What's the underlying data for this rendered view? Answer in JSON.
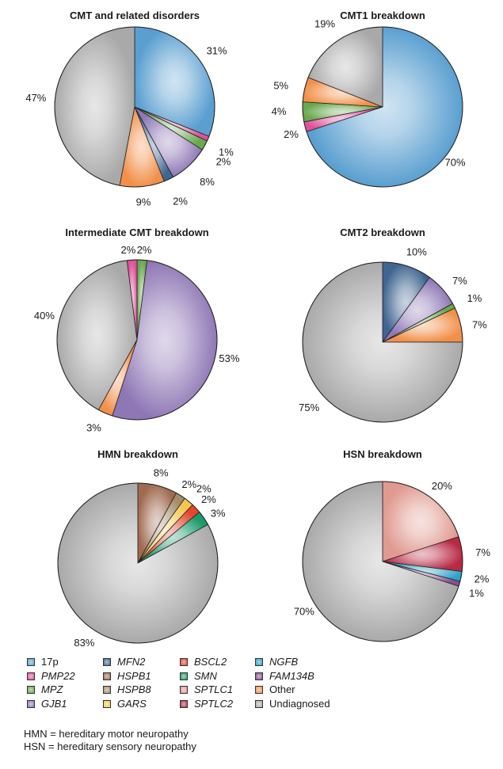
{
  "colors": {
    "17p": "#5a9fd0",
    "PMP22": "#e0509a",
    "MPZ": "#6aa84f",
    "GJB1": "#8f77b5",
    "MFN2": "#3f6690",
    "HSPB1": "#a06a50",
    "HSPB8": "#a58c6a",
    "GARS": "#f4c64e",
    "BSCL2": "#e4452d",
    "SMN": "#1c9a6a",
    "SPTLC1": "#e09a90",
    "SPTLC2": "#b82a45",
    "NGFB": "#2ba3c9",
    "FAM134B": "#8a4f8a",
    "Other": "#f2904a",
    "Undiagnosed": "#a9a9a9"
  },
  "chart_data": [
    {
      "type": "pie",
      "title": "CMT and related disorders",
      "start_angle_deg": 0,
      "slices": [
        {
          "key": "17p",
          "value": 31,
          "label": "31%"
        },
        {
          "key": "PMP22",
          "value": 1,
          "label": "1%"
        },
        {
          "key": "MPZ",
          "value": 2,
          "label": "2%"
        },
        {
          "key": "GJB1",
          "value": 8,
          "label": "8%"
        },
        {
          "key": "MFN2",
          "value": 2,
          "label": "2%"
        },
        {
          "key": "Other",
          "value": 9,
          "label": "9%"
        },
        {
          "key": "Undiagnosed",
          "value": 47,
          "label": "47%"
        }
      ]
    },
    {
      "type": "pie",
      "title": "CMT1 breakdown",
      "start_angle_deg": 0,
      "slices": [
        {
          "key": "17p",
          "value": 70,
          "label": "70%"
        },
        {
          "key": "PMP22",
          "value": 2,
          "label": "2%"
        },
        {
          "key": "MPZ",
          "value": 4,
          "label": "4%"
        },
        {
          "key": "Other",
          "value": 5,
          "label": "5%"
        },
        {
          "key": "Undiagnosed",
          "value": 19,
          "label": "19%"
        }
      ]
    },
    {
      "type": "pie",
      "title": "Intermediate CMT breakdown",
      "start_angle_deg": 0,
      "slices": [
        {
          "key": "MPZ",
          "value": 2,
          "label": "2%"
        },
        {
          "key": "GJB1",
          "value": 53,
          "label": "53%"
        },
        {
          "key": "Other",
          "value": 3,
          "label": "3%"
        },
        {
          "key": "Undiagnosed",
          "value": 40,
          "label": "40%"
        },
        {
          "key": "PMP22",
          "value": 2,
          "label": "2%"
        }
      ]
    },
    {
      "type": "pie",
      "title": "CMT2 breakdown",
      "start_angle_deg": 0,
      "slices": [
        {
          "key": "MFN2",
          "value": 10,
          "label": "10%"
        },
        {
          "key": "GJB1",
          "value": 7,
          "label": "7%"
        },
        {
          "key": "MPZ",
          "value": 1,
          "label": "1%"
        },
        {
          "key": "Other",
          "value": 7,
          "label": "7%"
        },
        {
          "key": "Undiagnosed",
          "value": 75,
          "label": "75%"
        }
      ]
    },
    {
      "type": "pie",
      "title": "HMN breakdown",
      "start_angle_deg": 0,
      "slices": [
        {
          "key": "HSPB1",
          "value": 8,
          "label": "8%"
        },
        {
          "key": "HSPB8",
          "value": 2,
          "label": "2%"
        },
        {
          "key": "GARS",
          "value": 2,
          "label": "2%"
        },
        {
          "key": "BSCL2",
          "value": 2,
          "label": "2%"
        },
        {
          "key": "SMN",
          "value": 3,
          "label": "3%"
        },
        {
          "key": "Undiagnosed",
          "value": 83,
          "label": "83%"
        }
      ]
    },
    {
      "type": "pie",
      "title": "HSN breakdown",
      "start_angle_deg": 0,
      "slices": [
        {
          "key": "SPTLC1",
          "value": 20,
          "label": "20%"
        },
        {
          "key": "SPTLC2",
          "value": 7,
          "label": "7%"
        },
        {
          "key": "NGFB",
          "value": 2,
          "label": "2%"
        },
        {
          "key": "FAM134B",
          "value": 1,
          "label": "1%"
        },
        {
          "key": "Undiagnosed",
          "value": 70,
          "label": "70%"
        }
      ]
    }
  ],
  "legend": {
    "columns": [
      [
        {
          "key": "17p",
          "label": "17p",
          "italic": false
        },
        {
          "key": "PMP22",
          "label": "PMP22",
          "italic": true
        },
        {
          "key": "MPZ",
          "label": "MPZ",
          "italic": true
        },
        {
          "key": "GJB1",
          "label": "GJB1",
          "italic": true
        }
      ],
      [
        {
          "key": "MFN2",
          "label": "MFN2",
          "italic": true
        },
        {
          "key": "HSPB1",
          "label": "HSPB1",
          "italic": true
        },
        {
          "key": "HSPB8",
          "label": "HSPB8",
          "italic": true
        },
        {
          "key": "GARS",
          "label": "GARS",
          "italic": true
        }
      ],
      [
        {
          "key": "BSCL2",
          "label": "BSCL2",
          "italic": true
        },
        {
          "key": "SMN",
          "label": "SMN",
          "italic": true
        },
        {
          "key": "SPTLC1",
          "label": "SPTLC1",
          "italic": true
        },
        {
          "key": "SPTLC2",
          "label": "SPTLC2",
          "italic": true
        }
      ],
      [
        {
          "key": "NGFB",
          "label": "NGFB",
          "italic": true
        },
        {
          "key": "FAM134B",
          "label": "FAM134B",
          "italic": true
        },
        {
          "key": "Other",
          "label": "Other",
          "italic": false
        },
        {
          "key": "Undiagnosed",
          "label": "Undiagnosed",
          "italic": false
        }
      ]
    ]
  },
  "footnotes": {
    "hmn": "HMN = hereditary motor neuropathy",
    "hsn": "HSN = hereditary sensory neuropathy"
  }
}
